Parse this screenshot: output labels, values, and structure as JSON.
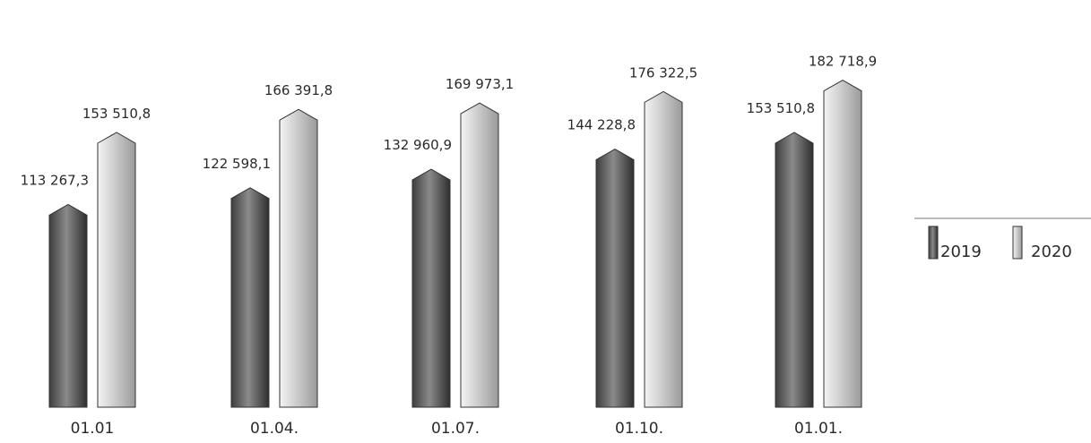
{
  "chart_data": {
    "type": "bar",
    "categories": [
      "01.01",
      "01.04.",
      "01.07.",
      "01.10.",
      "01.01."
    ],
    "series": [
      {
        "name": "2019",
        "values": [
          113267.3,
          122598.1,
          132960.9,
          144228.8,
          153510.8
        ],
        "labels": [
          "113 267,3",
          "122 598,1",
          "132 960,9",
          "144 228,8",
          "153 510,8"
        ],
        "color": "#5a5a5a"
      },
      {
        "name": "2020",
        "values": [
          153510.8,
          166391.8,
          169973.1,
          176322.5,
          182718.9
        ],
        "labels": [
          "153 510,8",
          "166 391,8",
          "169 973,1",
          "176 322,5",
          "182 718,9"
        ],
        "color": "#bdbdbd"
      }
    ],
    "ylim": [
      0,
      190000
    ],
    "legend": "right",
    "grid": false,
    "title": "",
    "xlabel": "",
    "ylabel": ""
  }
}
